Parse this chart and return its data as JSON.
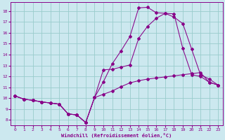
{
  "xlabel": "Windchill (Refroidissement éolien,°C)",
  "bg_color": "#cce8ef",
  "line_color": "#880088",
  "grid_color": "#99cccc",
  "x_ticks": [
    0,
    1,
    2,
    3,
    4,
    5,
    6,
    7,
    8,
    9,
    10,
    11,
    12,
    13,
    14,
    15,
    16,
    17,
    18,
    19,
    20,
    21,
    22,
    23
  ],
  "y_ticks": [
    8,
    9,
    10,
    11,
    12,
    13,
    14,
    15,
    16,
    17,
    18
  ],
  "xlim": [
    -0.5,
    23.5
  ],
  "ylim": [
    7.5,
    18.8
  ],
  "line1_y": [
    10.2,
    9.9,
    9.8,
    9.65,
    9.55,
    9.45,
    8.55,
    8.45,
    7.75,
    10.05,
    10.35,
    10.65,
    11.05,
    11.4,
    11.6,
    11.75,
    11.85,
    11.95,
    12.05,
    12.15,
    12.25,
    12.35,
    11.45,
    11.2
  ],
  "line2_y": [
    10.2,
    9.9,
    9.8,
    9.65,
    9.55,
    9.45,
    8.55,
    8.45,
    7.75,
    10.05,
    12.6,
    12.65,
    12.85,
    13.05,
    15.5,
    16.6,
    17.35,
    17.8,
    17.75,
    14.55,
    12.15,
    12.0,
    11.45,
    11.2
  ],
  "line3_y": [
    10.2,
    9.9,
    9.8,
    9.65,
    9.55,
    9.45,
    8.55,
    8.45,
    7.75,
    10.05,
    11.5,
    13.15,
    14.35,
    15.65,
    18.3,
    18.35,
    17.85,
    17.8,
    17.45,
    16.85,
    14.5,
    12.15,
    11.75,
    11.2
  ]
}
